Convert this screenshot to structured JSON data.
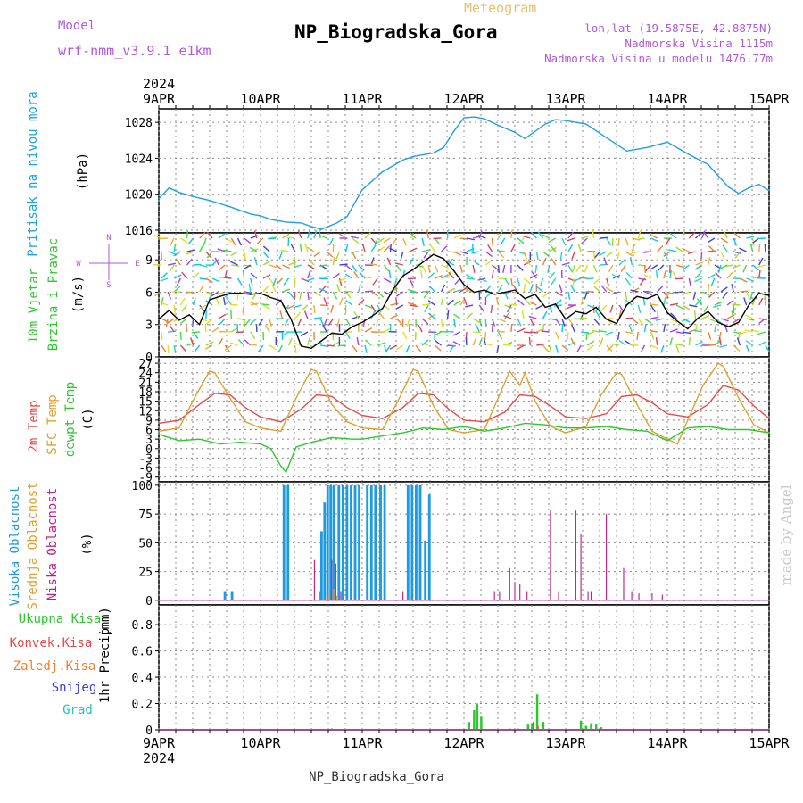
{
  "header": {
    "model_label": "Model",
    "model_value": "wrf-nmm_v3.9.1  e1km",
    "title": "NP_Biogradska_Gora",
    "meteogram_label": "Meteogram",
    "lonlat": "lon,lat (19.5875E, 42.8875N)",
    "elevation": "Nadmorska Visina 1115m",
    "model_elevation": "Nadmorska Visina u modelu 1476.77m",
    "colors": {
      "model": "#b05ad8",
      "meteogram": "#e8c070",
      "title": "#000000",
      "info": "#b05ad8"
    }
  },
  "footer": {
    "station": "NP_Biogradska_Gora",
    "year": "2024"
  },
  "watermark": "made by Angel",
  "time_axis": {
    "year": "2024",
    "ticks": [
      "9APR",
      "10APR",
      "11APR",
      "12APR",
      "13APR",
      "14APR",
      "15APR"
    ]
  },
  "chart_data": [
    {
      "type": "line",
      "panel": "pressure",
      "ylabel": "Pritisak na nivou mora",
      "unit": "(hPa)",
      "ylim": [
        1015.7,
        1029.5
      ],
      "yticks": [
        1016,
        1020,
        1024,
        1028
      ],
      "grid": true,
      "series": [
        {
          "name": "Pritisak na nivou mora",
          "color": "#1fa0e0",
          "x": [
            0,
            0.1,
            0.2,
            0.35,
            0.5,
            0.7,
            0.9,
            1.0,
            1.1,
            1.25,
            1.4,
            1.5,
            1.6,
            1.75,
            1.85,
            2.0,
            2.2,
            2.4,
            2.5,
            2.6,
            2.7,
            2.8,
            2.9,
            3.0,
            3.1,
            3.2,
            3.35,
            3.5,
            3.6,
            3.7,
            3.8,
            3.9,
            4.0,
            4.2,
            4.4,
            4.6,
            4.8,
            5.0,
            5.2,
            5.4,
            5.6,
            5.7,
            5.8,
            5.9,
            6.0
          ],
          "values": [
            1019.5,
            1020.7,
            1020.2,
            1019.7,
            1019.3,
            1018.6,
            1017.8,
            1017.6,
            1017.2,
            1016.9,
            1016.8,
            1016.4,
            1016.1,
            1016.8,
            1017.5,
            1020.5,
            1022.5,
            1023.8,
            1024.2,
            1024.4,
            1024.6,
            1025.2,
            1027.0,
            1028.5,
            1028.6,
            1028.4,
            1027.6,
            1026.9,
            1026.2,
            1027.0,
            1027.8,
            1028.3,
            1028.2,
            1027.8,
            1026.3,
            1024.8,
            1025.2,
            1025.8,
            1024.5,
            1023.3,
            1020.8,
            1020.1,
            1020.7,
            1021.1,
            1020.4
          ]
        }
      ]
    },
    {
      "type": "line",
      "panel": "wind",
      "ylabel": "10m Vjetar Brzina i Pravac",
      "unit": "(m/s)",
      "ylim": [
        0,
        11.5
      ],
      "yticks": [
        0,
        3,
        6,
        9
      ],
      "grid": true,
      "compass": {
        "n": "N",
        "s": "S",
        "w": "W",
        "e": "E"
      },
      "series": [
        {
          "name": "Brzina",
          "color": "#000000",
          "x": [
            0,
            0.1,
            0.2,
            0.3,
            0.4,
            0.5,
            0.6,
            0.7,
            0.8,
            0.9,
            1.0,
            1.1,
            1.2,
            1.3,
            1.4,
            1.5,
            1.6,
            1.7,
            1.8,
            1.9,
            2.0,
            2.1,
            2.2,
            2.3,
            2.4,
            2.5,
            2.6,
            2.7,
            2.8,
            2.9,
            3.0,
            3.1,
            3.2,
            3.3,
            3.4,
            3.5,
            3.6,
            3.7,
            3.8,
            3.9,
            4.0,
            4.1,
            4.2,
            4.3,
            4.4,
            4.5,
            4.6,
            4.7,
            4.8,
            4.9,
            5.0,
            5.1,
            5.2,
            5.3,
            5.4,
            5.5,
            5.6,
            5.7,
            5.8,
            5.9,
            6.0
          ],
          "values": [
            3.5,
            4.3,
            3.4,
            3.9,
            3.0,
            5.3,
            5.6,
            5.9,
            5.9,
            5.8,
            5.9,
            5.5,
            5.2,
            3.5,
            1.0,
            0.8,
            1.5,
            2.2,
            2.1,
            2.8,
            3.2,
            3.8,
            4.5,
            6.2,
            7.5,
            8.1,
            8.8,
            9.5,
            9.1,
            8.0,
            6.7,
            6.0,
            6.2,
            5.8,
            6.0,
            6.2,
            5.4,
            5.8,
            4.6,
            4.9,
            3.5,
            4.2,
            4.0,
            4.6,
            3.5,
            3.1,
            4.8,
            5.6,
            5.4,
            5.8,
            4.1,
            3.3,
            2.6,
            3.6,
            4.2,
            3.2,
            2.8,
            3.2,
            4.8,
            5.9,
            5.7
          ]
        }
      ]
    },
    {
      "type": "line",
      "panel": "temperature",
      "unit": "(C)",
      "ylim": [
        -10.5,
        29
      ],
      "yticks": [
        -9,
        -6,
        -3,
        0,
        3,
        6,
        9,
        12,
        15,
        18,
        21,
        24,
        27
      ],
      "grid": true,
      "series": [
        {
          "name": "2m Temp",
          "color": "#e84a4a",
          "x": [
            0,
            0.2,
            0.4,
            0.55,
            0.7,
            0.85,
            1.0,
            1.2,
            1.4,
            1.55,
            1.7,
            1.85,
            2.0,
            2.2,
            2.4,
            2.55,
            2.7,
            2.85,
            3.0,
            3.2,
            3.4,
            3.55,
            3.7,
            3.85,
            4.0,
            4.2,
            4.4,
            4.55,
            4.7,
            4.85,
            5.0,
            5.2,
            5.4,
            5.55,
            5.7,
            5.85,
            6.0
          ],
          "values": [
            8.0,
            9.0,
            14.0,
            17.5,
            17.0,
            13.0,
            10.0,
            8.5,
            12.5,
            17.0,
            16.5,
            13.0,
            10.5,
            9.5,
            13.0,
            17.5,
            17.0,
            12.5,
            9.0,
            8.5,
            11.5,
            17.0,
            16.5,
            13.5,
            10.0,
            9.5,
            11.0,
            16.5,
            17.0,
            14.5,
            11.0,
            10.0,
            14.0,
            20.0,
            18.5,
            13.5,
            9.5
          ]
        },
        {
          "name": "SFC Temp",
          "color": "#e0a030",
          "x": [
            0,
            0.2,
            0.35,
            0.5,
            0.55,
            0.7,
            0.85,
            1.0,
            1.2,
            1.35,
            1.5,
            1.55,
            1.7,
            1.85,
            2.0,
            2.2,
            2.35,
            2.5,
            2.55,
            2.7,
            2.85,
            3.0,
            3.2,
            3.35,
            3.45,
            3.55,
            3.6,
            3.7,
            3.85,
            4.0,
            4.2,
            4.35,
            4.5,
            4.55,
            4.7,
            4.85,
            5.0,
            5.1,
            5.2,
            5.35,
            5.5,
            5.55,
            5.7,
            5.85,
            6.0
          ],
          "values": [
            5.5,
            6.5,
            16.0,
            24.5,
            24.0,
            16.0,
            8.5,
            6.5,
            5.5,
            16.0,
            25.0,
            24.5,
            14.0,
            8.5,
            6.5,
            6.0,
            15.0,
            25.0,
            24.5,
            13.5,
            6.0,
            5.0,
            6.0,
            17.0,
            24.5,
            20.0,
            24.0,
            15.0,
            7.0,
            5.0,
            7.0,
            17.0,
            24.0,
            23.5,
            14.0,
            5.5,
            3.0,
            1.5,
            9.0,
            20.0,
            27.0,
            26.0,
            16.0,
            7.5,
            5.0
          ]
        },
        {
          "name": "dewpt Temp",
          "color": "#2ec82e",
          "x": [
            0,
            0.2,
            0.4,
            0.6,
            0.8,
            1.0,
            1.1,
            1.2,
            1.25,
            1.35,
            1.5,
            1.7,
            1.9,
            2.0,
            2.2,
            2.4,
            2.6,
            2.8,
            3.0,
            3.2,
            3.4,
            3.6,
            3.8,
            4.0,
            4.2,
            4.4,
            4.6,
            4.8,
            5.0,
            5.1,
            5.2,
            5.4,
            5.6,
            5.8,
            6.0
          ],
          "values": [
            4.5,
            2.5,
            3.0,
            1.5,
            2.0,
            1.5,
            0.0,
            -5.5,
            -7.5,
            0.5,
            2.0,
            3.5,
            3.0,
            3.0,
            4.0,
            5.0,
            6.5,
            6.0,
            7.0,
            5.5,
            6.5,
            8.0,
            7.5,
            6.5,
            6.5,
            7.0,
            6.0,
            5.5,
            2.5,
            4.5,
            6.5,
            7.0,
            6.0,
            6.0,
            5.0
          ]
        }
      ]
    },
    {
      "type": "bar",
      "panel": "cloud",
      "unit": "(%)",
      "ylim": [
        -4,
        103
      ],
      "yticks": [
        0,
        25,
        50,
        75,
        100
      ],
      "grid": true,
      "series": [
        {
          "name": "Visoka Oblacnost",
          "color": "#1e9ae0",
          "bar_width": 0.025,
          "x": [
            0.65,
            0.72,
            1.23,
            1.27,
            1.6,
            1.63,
            1.66,
            1.69,
            1.72,
            1.77,
            1.81,
            1.85,
            1.89,
            1.93,
            1.97,
            2.05,
            2.09,
            2.13,
            2.18,
            2.22,
            2.45,
            2.49,
            2.53,
            2.57,
            2.62,
            2.66
          ],
          "values": [
            8,
            8,
            100,
            100,
            60,
            85,
            100,
            100,
            100,
            100,
            100,
            100,
            100,
            100,
            100,
            100,
            100,
            100,
            100,
            100,
            100,
            100,
            100,
            100,
            52,
            92
          ]
        },
        {
          "name": "Srednja Oblacnost",
          "color": "#e0a030",
          "bar_width": 0.01,
          "x": [
            1.67,
            1.72,
            1.75
          ],
          "values": [
            5,
            10,
            4
          ]
        },
        {
          "name": "Niska Oblacnost",
          "color": "#c0208a",
          "bar_width": 0.01,
          "x": [
            1.53,
            1.58,
            1.7,
            1.74,
            1.79,
            2.4,
            3.3,
            3.35,
            3.45,
            3.5,
            3.55,
            3.62,
            3.85,
            3.93,
            4.1,
            4.15,
            4.22,
            4.25,
            4.4,
            4.57,
            4.65,
            4.72,
            4.85,
            4.95
          ],
          "values": [
            35,
            8,
            35,
            32,
            8,
            8,
            8,
            8,
            28,
            16,
            14,
            8,
            78,
            8,
            78,
            58,
            8,
            8,
            75,
            28,
            8,
            6,
            6,
            5
          ]
        }
      ]
    },
    {
      "type": "bar",
      "panel": "precip",
      "ylabel": "1hr Precip",
      "unit": "(mm)",
      "ylim": [
        0,
        0.95
      ],
      "yticks": [
        0,
        0.2,
        0.4,
        0.6,
        0.8
      ],
      "grid": true,
      "series": [
        {
          "name": "Ukupna Kisa",
          "color": "#2ec82e",
          "bar_width": 0.022,
          "x": [
            1.7,
            3.05,
            3.1,
            3.13,
            3.17,
            3.45,
            3.53,
            3.63,
            3.67,
            3.72,
            3.78,
            4.15,
            4.2,
            4.25,
            4.3,
            4.35
          ],
          "values": [
            0.01,
            0.06,
            0.15,
            0.2,
            0.1,
            0.01,
            0.01,
            0.04,
            0.05,
            0.27,
            0.06,
            0.07,
            0.03,
            0.05,
            0.04,
            0.02
          ]
        },
        {
          "name": "Konvek.Kisa",
          "color": "#e84a4a",
          "bar_width": 0.01,
          "x": [
            3.68,
            3.73
          ],
          "values": [
            0.06,
            0.03
          ]
        },
        {
          "name": "Zaledj.Kisa",
          "color": "#f08030",
          "bar_width": 0.01,
          "x": [],
          "values": []
        },
        {
          "name": "Snijeg",
          "color": "#3c3ce0",
          "bar_width": 0.01,
          "x": [],
          "values": []
        },
        {
          "name": "Grad",
          "color": "#20c0c0",
          "bar_width": 0.01,
          "x": [],
          "values": []
        }
      ]
    }
  ],
  "legends": {
    "temperature": [
      {
        "name": "2m Temp",
        "color": "#e84a4a"
      },
      {
        "name": "SFC Temp",
        "color": "#e0a030"
      },
      {
        "name": "dewpt Temp",
        "color": "#2ec82e"
      }
    ],
    "cloud": [
      {
        "name": "Visoka Oblacnost",
        "color": "#1e9ae0"
      },
      {
        "name": "Srednja Oblacnost",
        "color": "#e0a030"
      },
      {
        "name": "Niska Oblacnost",
        "color": "#c0208a"
      }
    ],
    "wind": [
      {
        "name": "10m Vjetar",
        "color": "#2ec82e"
      },
      {
        "name": "Brzina i Pravac",
        "color": "#2ec82e"
      }
    ],
    "precip": [
      {
        "name": "Ukupna Kisa",
        "color": "#2ec82e"
      },
      {
        "name": "Konvek.Kisa",
        "color": "#e84a4a"
      },
      {
        "name": "Zaledj.Kisa",
        "color": "#f08030"
      },
      {
        "name": "Snijeg",
        "color": "#3c3ce0"
      },
      {
        "name": "Grad",
        "color": "#20c0c0"
      }
    ]
  }
}
